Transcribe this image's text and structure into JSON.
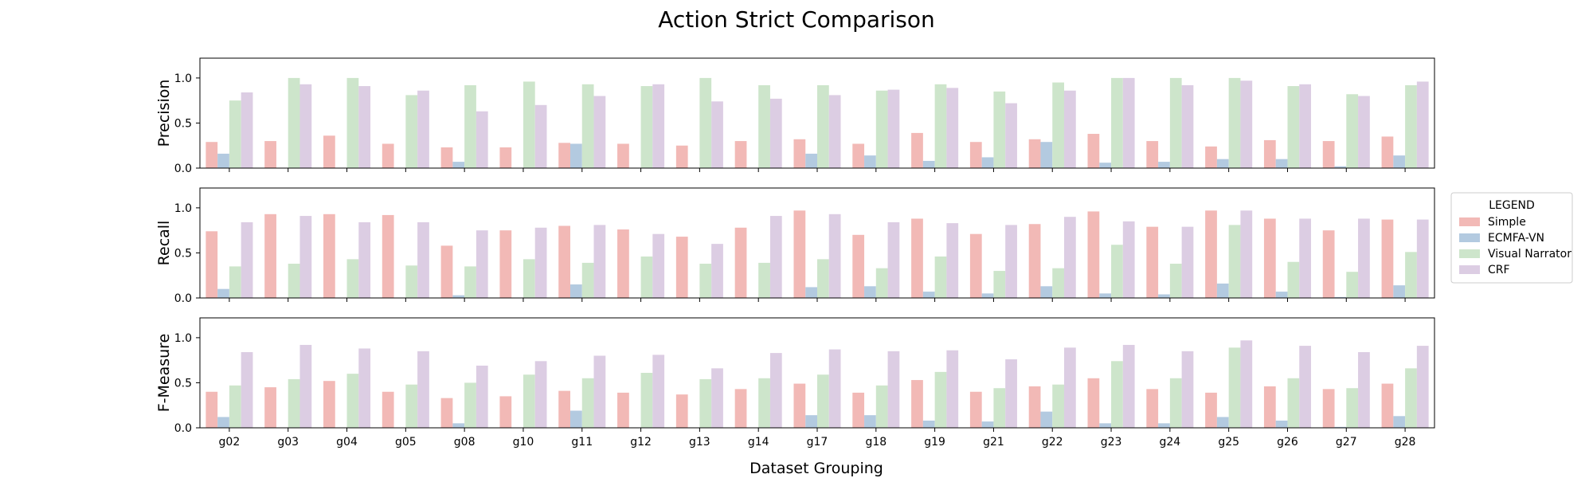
{
  "chart_data": {
    "type": "bar",
    "title": "Action Strict Comparison",
    "xlabel": "Dataset Grouping",
    "categories": [
      "g02",
      "g03",
      "g04",
      "g05",
      "g08",
      "g10",
      "g11",
      "g12",
      "g13",
      "g14",
      "g17",
      "g18",
      "g19",
      "g21",
      "g22",
      "g23",
      "g24",
      "g25",
      "g26",
      "g27",
      "g28"
    ],
    "legend": {
      "title": "LEGEND",
      "placement": "right",
      "entries": [
        "Simple",
        "ECMFA-VN",
        "Visual Narrator",
        "CRF"
      ]
    },
    "series_colors": [
      "#f2b9b6",
      "#b3cae0",
      "#cde5cb",
      "#dccde3"
    ],
    "grid": false,
    "panels": [
      {
        "ylabel": "Precision",
        "ylim": [
          0,
          1.22
        ],
        "yticks": [
          0.0,
          0.5,
          1.0
        ],
        "ytick_labels": [
          "0.0",
          "0.5",
          "1.0"
        ],
        "series": [
          {
            "name": "Simple",
            "values": [
              0.29,
              0.3,
              0.36,
              0.27,
              0.23,
              0.23,
              0.28,
              0.27,
              0.25,
              0.3,
              0.32,
              0.27,
              0.39,
              0.29,
              0.32,
              0.38,
              0.3,
              0.24,
              0.31,
              0.3,
              0.35
            ]
          },
          {
            "name": "ECMFA-VN",
            "values": [
              0.16,
              0,
              0,
              0,
              0.07,
              0,
              0.27,
              0,
              0,
              0,
              0.16,
              0.14,
              0.08,
              0.12,
              0.29,
              0.06,
              0.07,
              0.1,
              0.1,
              0.02,
              0.14
            ]
          },
          {
            "name": "Visual Narrator",
            "values": [
              0.75,
              1.0,
              1.0,
              0.81,
              0.92,
              0.96,
              0.93,
              0.91,
              1.0,
              0.92,
              0.92,
              0.86,
              0.93,
              0.85,
              0.95,
              1.0,
              1.0,
              1.0,
              0.91,
              0.82,
              0.92
            ]
          },
          {
            "name": "CRF",
            "values": [
              0.84,
              0.93,
              0.91,
              0.86,
              0.63,
              0.7,
              0.8,
              0.93,
              0.74,
              0.77,
              0.81,
              0.87,
              0.89,
              0.72,
              0.86,
              1.0,
              0.92,
              0.97,
              0.93,
              0.8,
              0.96
            ]
          }
        ]
      },
      {
        "ylabel": "Recall",
        "ylim": [
          0,
          1.22
        ],
        "yticks": [
          0.0,
          0.5,
          1.0
        ],
        "ytick_labels": [
          "0.0",
          "0.5",
          "1.0"
        ],
        "series": [
          {
            "name": "Simple",
            "values": [
              0.74,
              0.93,
              0.93,
              0.92,
              0.58,
              0.75,
              0.8,
              0.76,
              0.68,
              0.78,
              0.97,
              0.7,
              0.88,
              0.71,
              0.82,
              0.96,
              0.79,
              0.97,
              0.88,
              0.75,
              0.87
            ]
          },
          {
            "name": "ECMFA-VN",
            "values": [
              0.1,
              0,
              0,
              0,
              0.03,
              0,
              0.15,
              0,
              0,
              0,
              0.12,
              0.13,
              0.07,
              0.05,
              0.13,
              0.05,
              0.04,
              0.16,
              0.07,
              0.01,
              0.14
            ]
          },
          {
            "name": "Visual Narrator",
            "values": [
              0.35,
              0.38,
              0.43,
              0.36,
              0.35,
              0.43,
              0.39,
              0.46,
              0.38,
              0.39,
              0.43,
              0.33,
              0.46,
              0.3,
              0.33,
              0.59,
              0.38,
              0.81,
              0.4,
              0.29,
              0.51
            ]
          },
          {
            "name": "CRF",
            "values": [
              0.84,
              0.91,
              0.84,
              0.84,
              0.75,
              0.78,
              0.81,
              0.71,
              0.6,
              0.91,
              0.93,
              0.84,
              0.83,
              0.81,
              0.9,
              0.85,
              0.79,
              0.97,
              0.88,
              0.88,
              0.87
            ]
          }
        ]
      },
      {
        "ylabel": "F-Measure",
        "ylim": [
          0,
          1.22
        ],
        "yticks": [
          0.0,
          0.5,
          1.0
        ],
        "ytick_labels": [
          "0.0",
          "0.5",
          "1.0"
        ],
        "series": [
          {
            "name": "Simple",
            "values": [
              0.4,
              0.45,
              0.52,
              0.4,
              0.33,
              0.35,
              0.41,
              0.39,
              0.37,
              0.43,
              0.49,
              0.39,
              0.53,
              0.4,
              0.46,
              0.55,
              0.43,
              0.39,
              0.46,
              0.43,
              0.49
            ]
          },
          {
            "name": "ECMFA-VN",
            "values": [
              0.12,
              0,
              0,
              0,
              0.05,
              0,
              0.19,
              0,
              0,
              0,
              0.14,
              0.14,
              0.08,
              0.07,
              0.18,
              0.05,
              0.05,
              0.12,
              0.08,
              0.01,
              0.13
            ]
          },
          {
            "name": "Visual Narrator",
            "values": [
              0.47,
              0.54,
              0.6,
              0.48,
              0.5,
              0.59,
              0.55,
              0.61,
              0.54,
              0.55,
              0.59,
              0.47,
              0.62,
              0.44,
              0.48,
              0.74,
              0.55,
              0.89,
              0.55,
              0.44,
              0.66
            ]
          },
          {
            "name": "CRF",
            "values": [
              0.84,
              0.92,
              0.88,
              0.85,
              0.69,
              0.74,
              0.8,
              0.81,
              0.66,
              0.83,
              0.87,
              0.85,
              0.86,
              0.76,
              0.89,
              0.92,
              0.85,
              0.97,
              0.91,
              0.84,
              0.91
            ]
          }
        ]
      }
    ]
  }
}
